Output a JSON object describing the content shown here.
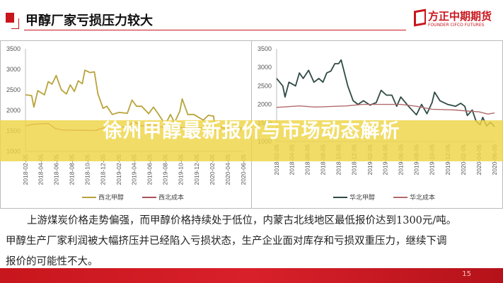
{
  "header": {
    "title": "甲醇厂家亏损压力较大"
  },
  "logo": {
    "name_cn": "方正中期期货",
    "name_en": "FOUNDER CIFCO FUTURES"
  },
  "banner": {
    "text": "徐州甲醇最新报价与市场动态解析"
  },
  "body": {
    "paragraphs": [
      "上游煤炭价格走势偏强，而甲醇价格持续处于低位，内蒙古北线地区最低报价达到1300元/吨。",
      "甲醇生产厂家利润被大幅挤压并已经陷入亏损状态，生产企业面对库存和亏损双重压力，继续下调",
      "报价的可能性不大。"
    ]
  },
  "footer": {
    "page": "15"
  },
  "chart_data": [
    {
      "type": "line",
      "ylim": [
        1000,
        3500
      ],
      "yticks": [
        1000,
        1500,
        2000,
        2500,
        3000,
        3500
      ],
      "xticks": [
        "2018-02-05",
        "2018-04-05",
        "2018-06-05",
        "2018-08-05",
        "2018-10-05",
        "2018-12-05",
        "2019-02-05",
        "2019-04-05",
        "2019-06-05",
        "2019-08-05",
        "2019-10-05",
        "2019-12-05",
        "2020-02-05",
        "2020-04-05",
        "2020-06-05"
      ],
      "legend_position": "bottom",
      "series": [
        {
          "name": "西北甲醇",
          "color": "#b9a33a",
          "points": [
            [
              "2018-02-05",
              2380
            ],
            [
              "2018-03-01",
              2360
            ],
            [
              "2018-03-10",
              2080
            ],
            [
              "2018-03-25",
              2480
            ],
            [
              "2018-04-20",
              2380
            ],
            [
              "2018-05-05",
              2700
            ],
            [
              "2018-05-20",
              2640
            ],
            [
              "2018-06-05",
              2850
            ],
            [
              "2018-06-25",
              2500
            ],
            [
              "2018-07-15",
              2400
            ],
            [
              "2018-07-30",
              2620
            ],
            [
              "2018-08-15",
              2460
            ],
            [
              "2018-08-30",
              2720
            ],
            [
              "2018-09-15",
              2650
            ],
            [
              "2018-09-25",
              2980
            ],
            [
              "2018-10-15",
              2920
            ],
            [
              "2018-11-01",
              2940
            ],
            [
              "2018-11-15",
              2400
            ],
            [
              "2018-12-05",
              2050
            ],
            [
              "2018-12-20",
              2100
            ],
            [
              "2019-01-10",
              1900
            ],
            [
              "2019-02-05",
              1950
            ],
            [
              "2019-03-10",
              1930
            ],
            [
              "2019-03-28",
              2250
            ],
            [
              "2019-04-15",
              2100
            ],
            [
              "2019-05-05",
              2100
            ],
            [
              "2019-06-01",
              1920
            ],
            [
              "2019-06-20",
              2080
            ],
            [
              "2019-07-10",
              1900
            ],
            [
              "2019-08-05",
              1650
            ],
            [
              "2019-08-25",
              1900
            ],
            [
              "2019-09-10",
              1700
            ],
            [
              "2019-10-01",
              1980
            ],
            [
              "2019-10-10",
              2280
            ],
            [
              "2019-11-01",
              1900
            ],
            [
              "2019-11-25",
              1900
            ],
            [
              "2020-01-01",
              1760
            ],
            [
              "2020-01-20",
              1880
            ],
            [
              "2020-02-10",
              1860
            ],
            [
              "2020-02-15",
              1500
            ],
            [
              "2020-03-10",
              1600
            ],
            [
              "2020-04-05",
              1500
            ],
            [
              "2020-05-05",
              1450
            ],
            [
              "2020-06-05",
              1560
            ]
          ]
        },
        {
          "name": "西北成本",
          "color": "#a8525a",
          "points": [
            [
              "2018-02-05",
              1620
            ],
            [
              "2018-03-05",
              1660
            ],
            [
              "2018-05-05",
              1680
            ],
            [
              "2018-06-01",
              1560
            ],
            [
              "2018-07-01",
              1520
            ],
            [
              "2018-11-05",
              1510
            ],
            [
              "2018-12-05",
              1570
            ],
            [
              "2019-03-05",
              1600
            ],
            [
              "2019-04-05",
              1720
            ],
            [
              "2019-05-05",
              1620
            ],
            [
              "2019-06-05",
              1650
            ],
            [
              "2019-08-05",
              1580
            ],
            [
              "2019-10-05",
              1580
            ],
            [
              "2020-02-05",
              1570
            ],
            [
              "2020-06-05",
              1570
            ]
          ]
        }
      ]
    },
    {
      "type": "line",
      "ylim": [
        1000,
        3500
      ],
      "yticks": [
        1000,
        1500,
        2000,
        2500,
        3000,
        3500
      ],
      "xticks": [
        "2018-02-05",
        "2018-04-05",
        "2018-06-05",
        "2018-08-05",
        "2018-10-05",
        "2018-12-05",
        "2019-02-05",
        "2019-04-05",
        "2019-06-05",
        "2019-08-05",
        "2019-10-05",
        "2019-12-05",
        "2020-02-05",
        "2020-04-05",
        "2020-06-05"
      ],
      "legend_position": "bottom",
      "series": [
        {
          "name": "华北甲醇",
          "color": "#2e4a44",
          "points": [
            [
              "2018-02-05",
              2700
            ],
            [
              "2018-03-01",
              2500
            ],
            [
              "2018-03-10",
              2200
            ],
            [
              "2018-03-25",
              2600
            ],
            [
              "2018-04-20",
              2500
            ],
            [
              "2018-05-05",
              2850
            ],
            [
              "2018-05-20",
              2700
            ],
            [
              "2018-06-10",
              2920
            ],
            [
              "2018-07-01",
              2600
            ],
            [
              "2018-07-20",
              2700
            ],
            [
              "2018-08-05",
              2600
            ],
            [
              "2018-08-20",
              2850
            ],
            [
              "2018-09-05",
              2900
            ],
            [
              "2018-09-20",
              3100
            ],
            [
              "2018-10-05",
              3100
            ],
            [
              "2018-10-15",
              3200
            ],
            [
              "2018-11-10",
              2500
            ],
            [
              "2018-12-01",
              2100
            ],
            [
              "2018-12-20",
              2000
            ],
            [
              "2019-01-10",
              2100
            ],
            [
              "2019-02-05",
              1980
            ],
            [
              "2019-03-01",
              2050
            ],
            [
              "2019-03-20",
              2380
            ],
            [
              "2019-04-10",
              2250
            ],
            [
              "2019-05-01",
              2250
            ],
            [
              "2019-05-20",
              1950
            ],
            [
              "2019-06-05",
              2200
            ],
            [
              "2019-07-05",
              1950
            ],
            [
              "2019-08-05",
              1720
            ],
            [
              "2019-08-25",
              2000
            ],
            [
              "2019-09-15",
              1750
            ],
            [
              "2019-10-05",
              2050
            ],
            [
              "2019-10-15",
              2330
            ],
            [
              "2019-11-05",
              2100
            ],
            [
              "2019-12-05",
              2000
            ],
            [
              "2020-01-05",
              1950
            ],
            [
              "2020-01-25",
              2030
            ],
            [
              "2020-02-10",
              1950
            ],
            [
              "2020-02-20",
              1700
            ],
            [
              "2020-03-10",
              1850
            ],
            [
              "2020-03-25",
              1550
            ],
            [
              "2020-04-10",
              1450
            ],
            [
              "2020-04-20",
              1650
            ],
            [
              "2020-05-05",
              1420
            ],
            [
              "2020-05-20",
              1520
            ],
            [
              "2020-06-05",
              1400
            ]
          ]
        },
        {
          "name": "华北成本",
          "color": "#b26a6e",
          "points": [
            [
              "2018-02-05",
              1920
            ],
            [
              "2018-05-05",
              1960
            ],
            [
              "2018-07-05",
              1930
            ],
            [
              "2018-11-05",
              1960
            ],
            [
              "2019-01-05",
              2000
            ],
            [
              "2019-06-05",
              2000
            ],
            [
              "2019-08-05",
              1950
            ],
            [
              "2019-10-05",
              1870
            ],
            [
              "2020-01-05",
              1850
            ],
            [
              "2020-02-05",
              1830
            ],
            [
              "2020-04-05",
              1800
            ],
            [
              "2020-05-10",
              1740
            ],
            [
              "2020-06-05",
              1770
            ]
          ]
        }
      ]
    }
  ]
}
